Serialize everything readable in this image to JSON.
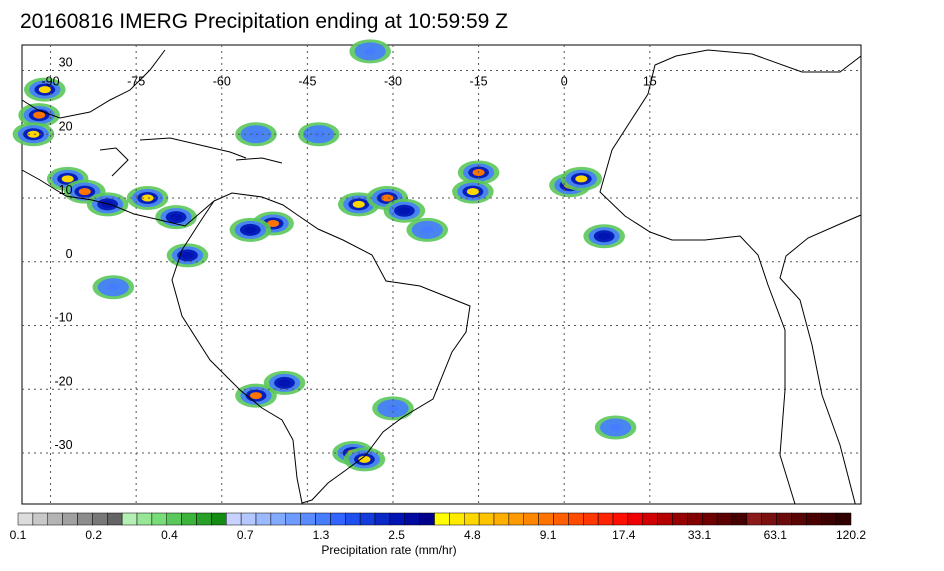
{
  "title": "20160816 IMERG Precipitation ending at 10:59:59 Z",
  "map": {
    "lon_range": [
      -95,
      52
    ],
    "lat_range": [
      34,
      -38
    ],
    "lon_grid": [
      -90,
      -75,
      -60,
      -45,
      -30,
      -15,
      0,
      15
    ],
    "lat_grid": [
      30,
      20,
      10,
      0,
      -10,
      -20,
      -30
    ],
    "lon_labels": [
      "-90",
      "-75",
      "-60",
      "-45",
      "-30",
      "-15",
      "0",
      "15"
    ],
    "lat_labels": [
      "30",
      "20",
      "10",
      "0",
      "-10",
      "-20",
      "-30"
    ],
    "land_color": "#ffffff",
    "coast_color": "#000000",
    "grid_color": "#555555"
  },
  "colorbar": {
    "label": "Precipitation rate (mm/hr)",
    "tick_labels": [
      "0.1",
      "0.2",
      "0.4",
      "0.7",
      "1.3",
      "2.5",
      "4.8",
      "9.1",
      "17.4",
      "33.1",
      "63.1",
      "120.2"
    ],
    "colors": [
      "#dcdcdc",
      "#c8c8c8",
      "#b4b4b4",
      "#a0a0a0",
      "#8c8c8c",
      "#787878",
      "#646464",
      "#b4f0b4",
      "#96e696",
      "#78dc78",
      "#5ac85a",
      "#3cb43c",
      "#28a028",
      "#148c14",
      "#c8d2ff",
      "#b4c8ff",
      "#9bb9ff",
      "#82aaff",
      "#6e9bff",
      "#5a8cff",
      "#467dff",
      "#3264ff",
      "#1e50f0",
      "#143cdc",
      "#0a28c8",
      "#0014b4",
      "#000aa0",
      "#00008c",
      "#ffff00",
      "#ffeb00",
      "#ffd700",
      "#ffc300",
      "#ffaf00",
      "#ff9b00",
      "#ff8700",
      "#ff7300",
      "#ff5f00",
      "#ff4b00",
      "#ff3700",
      "#ff2300",
      "#ff0f00",
      "#f00000",
      "#d20000",
      "#b40000",
      "#960000",
      "#820000",
      "#6e0000",
      "#5a0000",
      "#460000",
      "#8b1a1a",
      "#7a1010",
      "#6a0a0a",
      "#5a0505",
      "#4a0000",
      "#3c0000",
      "#300000"
    ]
  },
  "precip_cells": [
    {
      "lon": -92,
      "lat": 23,
      "intensity": 9.1
    },
    {
      "lon": -93,
      "lat": 20,
      "intensity": 4.8
    },
    {
      "lon": -91,
      "lat": 27,
      "intensity": 4.8
    },
    {
      "lon": -87,
      "lat": 13,
      "intensity": 4.8
    },
    {
      "lon": -84,
      "lat": 11,
      "intensity": 9.1
    },
    {
      "lon": -80,
      "lat": 9,
      "intensity": 2.5
    },
    {
      "lon": -73,
      "lat": 10,
      "intensity": 4.8
    },
    {
      "lon": -68,
      "lat": 7,
      "intensity": 2.5
    },
    {
      "lon": -51,
      "lat": 6,
      "intensity": 9.1
    },
    {
      "lon": -55,
      "lat": 5,
      "intensity": 2.5
    },
    {
      "lon": -36,
      "lat": 9,
      "intensity": 4.8
    },
    {
      "lon": -31,
      "lat": 10,
      "intensity": 9.1
    },
    {
      "lon": -28,
      "lat": 8,
      "intensity": 2.5
    },
    {
      "lon": -15,
      "lat": 14,
      "intensity": 9.1
    },
    {
      "lon": -16,
      "lat": 11,
      "intensity": 4.8
    },
    {
      "lon": 1,
      "lat": 12,
      "intensity": 9.1
    },
    {
      "lon": 3,
      "lat": 13,
      "intensity": 4.8
    },
    {
      "lon": 7,
      "lat": 4,
      "intensity": 2.5
    },
    {
      "lon": -54,
      "lat": -21,
      "intensity": 9.1
    },
    {
      "lon": -49,
      "lat": -19,
      "intensity": 2.5
    },
    {
      "lon": -37,
      "lat": -30,
      "intensity": 9.1
    },
    {
      "lon": -35,
      "lat": -31,
      "intensity": 4.8
    },
    {
      "lon": -66,
      "lat": 1,
      "intensity": 2.5
    },
    {
      "lon": -79,
      "lat": -4,
      "intensity": 1.3
    },
    {
      "lon": -30,
      "lat": -23,
      "intensity": 1.3
    },
    {
      "lon": -54,
      "lat": 20,
      "intensity": 1.3
    },
    {
      "lon": -43,
      "lat": 20,
      "intensity": 1.3
    },
    {
      "lon": -34,
      "lat": 33,
      "intensity": 1.3
    },
    {
      "lon": -24,
      "lat": 5,
      "intensity": 1.3
    },
    {
      "lon": 9,
      "lat": -26,
      "intensity": 1.3
    }
  ]
}
